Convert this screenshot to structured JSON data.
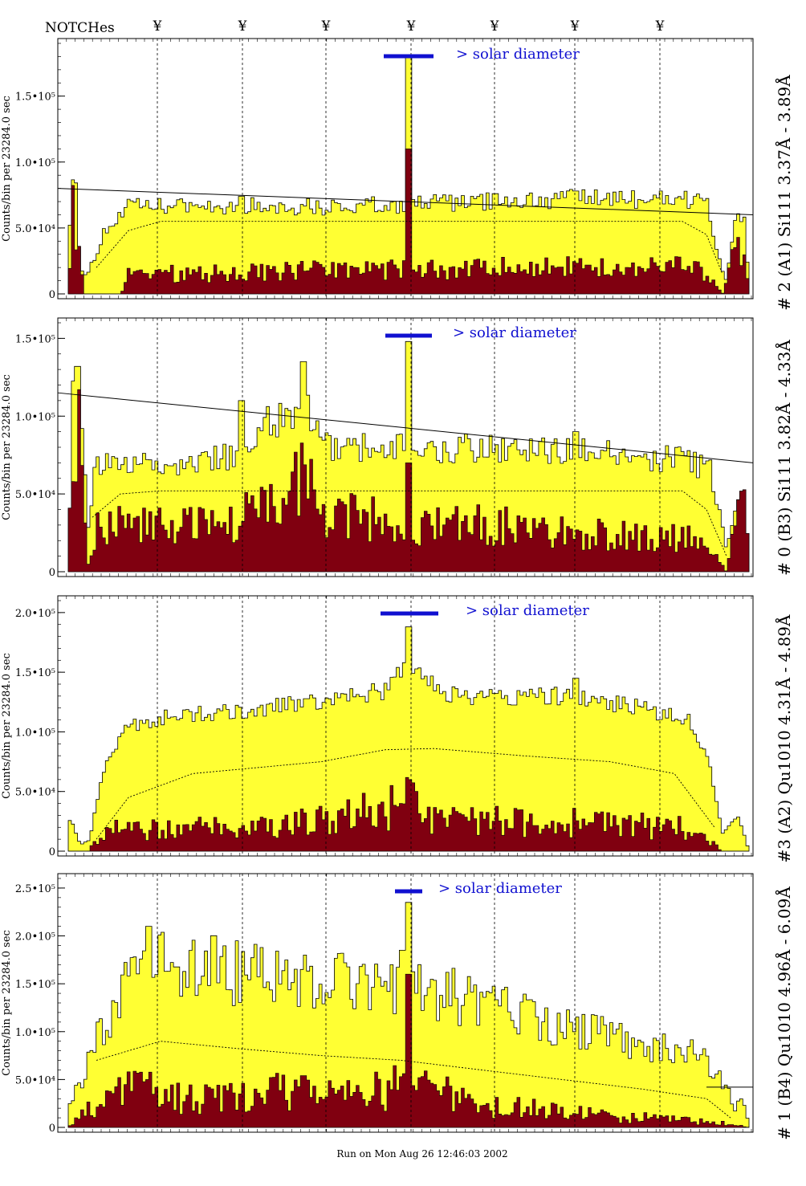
{
  "header": {
    "notches_label": "NOTCHes",
    "notch_symbol": "¥",
    "notch_positions": [
      196,
      302,
      406,
      512,
      616,
      716,
      822
    ]
  },
  "footer": {
    "run_text": "Run on Mon Aug 26 12:46:03 2002"
  },
  "colors": {
    "fill": "#ffff33",
    "dark": "#800010",
    "marker": "#1010d0"
  },
  "chart_data": [
    {
      "type": "bar",
      "panel_label": "# 2 (A1) Si111  3.37Å - 3.89Å",
      "ylabel": "Counts/bin per  23284.0 sec",
      "ylim": [
        0,
        190000
      ],
      "yticks": [
        {
          "v": 0,
          "label": "0"
        },
        {
          "v": 50000,
          "label": "5.0•10⁴"
        },
        {
          "v": 100000,
          "label": "1.0•10⁵"
        },
        {
          "v": 150000,
          "label": "1.5•10⁵"
        }
      ],
      "annotation": "> solar diameter",
      "marker_bar": [
        478,
        540
      ],
      "bins": 220,
      "envelope": [
        [
          85,
          0
        ],
        [
          88,
          90000
        ],
        [
          95,
          85000
        ],
        [
          100,
          20000
        ],
        [
          108,
          14000
        ],
        [
          120,
          30000
        ],
        [
          130,
          48000
        ],
        [
          145,
          55000
        ],
        [
          160,
          66000
        ],
        [
          300,
          67000
        ],
        [
          420,
          66000
        ],
        [
          500,
          68000
        ],
        [
          700,
          72000
        ],
        [
          850,
          72000
        ],
        [
          880,
          70000
        ],
        [
          895,
          30000
        ],
        [
          905,
          8000
        ],
        [
          915,
          55000
        ],
        [
          928,
          58000
        ],
        [
          933,
          0
        ]
      ],
      "dark_env": [
        [
          85,
          0
        ],
        [
          90,
          60000
        ],
        [
          100,
          30000
        ],
        [
          105,
          0
        ],
        [
          150,
          0
        ],
        [
          160,
          15000
        ],
        [
          300,
          16000
        ],
        [
          500,
          19000
        ],
        [
          700,
          20000
        ],
        [
          850,
          22000
        ],
        [
          880,
          15000
        ],
        [
          900,
          0
        ],
        [
          915,
          30000
        ],
        [
          928,
          40000
        ],
        [
          933,
          0
        ]
      ],
      "fill_noise": 0.1,
      "dark_noise": 0.45,
      "spikes": [
        {
          "x": 509,
          "v": 180000,
          "dv": 110000
        },
        {
          "x": 302,
          "v": 74000
        },
        {
          "x": 616,
          "v": 76000
        },
        {
          "x": 716,
          "v": 78000
        }
      ],
      "trend": [
        [
          72,
          80000
        ],
        [
          938,
          60000
        ]
      ],
      "dashed": [
        [
          120,
          20000
        ],
        [
          160,
          48000
        ],
        [
          200,
          55000
        ],
        [
          850,
          55000
        ],
        [
          880,
          45000
        ],
        [
          900,
          15000
        ]
      ]
    },
    {
      "type": "bar",
      "panel_label": "# 0 (B3) Si111  3.82Å - 4.33Å",
      "ylabel": "Counts/bin per  23284.0 sec",
      "ylim": [
        0,
        160000
      ],
      "yticks": [
        {
          "v": 0,
          "label": "0"
        },
        {
          "v": 50000,
          "label": "5.0•10⁴"
        },
        {
          "v": 100000,
          "label": "1.0•10⁵"
        },
        {
          "v": 150000,
          "label": "1.5•10⁵"
        }
      ],
      "annotation": "> solar diameter",
      "marker_bar": [
        480,
        538
      ],
      "bins": 220,
      "envelope": [
        [
          85,
          0
        ],
        [
          90,
          120000
        ],
        [
          100,
          100000
        ],
        [
          110,
          30000
        ],
        [
          120,
          70000
        ],
        [
          200,
          68000
        ],
        [
          300,
          75000
        ],
        [
          330,
          95000
        ],
        [
          360,
          100000
        ],
        [
          380,
          110000
        ],
        [
          400,
          80000
        ],
        [
          500,
          80000
        ],
        [
          700,
          78000
        ],
        [
          850,
          72000
        ],
        [
          885,
          65000
        ],
        [
          905,
          15000
        ],
        [
          918,
          50000
        ],
        [
          928,
          60000
        ],
        [
          933,
          0
        ]
      ],
      "dark_env": [
        [
          85,
          0
        ],
        [
          90,
          95000
        ],
        [
          100,
          80000
        ],
        [
          110,
          5000
        ],
        [
          120,
          30000
        ],
        [
          300,
          30000
        ],
        [
          320,
          65000
        ],
        [
          345,
          40000
        ],
        [
          380,
          60000
        ],
        [
          400,
          40000
        ],
        [
          500,
          30000
        ],
        [
          640,
          30000
        ],
        [
          700,
          25000
        ],
        [
          850,
          22000
        ],
        [
          885,
          15000
        ],
        [
          905,
          0
        ],
        [
          920,
          55000
        ],
        [
          928,
          60000
        ],
        [
          933,
          0
        ]
      ],
      "fill_noise": 0.12,
      "dark_noise": 0.45,
      "spikes": [
        {
          "x": 509,
          "v": 148000,
          "dv": 70000
        },
        {
          "x": 378,
          "v": 135000
        },
        {
          "x": 96,
          "v": 132000
        },
        {
          "x": 716,
          "v": 90000
        },
        {
          "x": 302,
          "v": 110000
        }
      ],
      "trend": [
        [
          72,
          115000
        ],
        [
          938,
          70000
        ]
      ],
      "dashed": [
        [
          115,
          35000
        ],
        [
          150,
          50000
        ],
        [
          200,
          52000
        ],
        [
          850,
          52000
        ],
        [
          880,
          40000
        ],
        [
          905,
          10000
        ]
      ]
    },
    {
      "type": "bar",
      "panel_label": "#3 (A2) Qu1010  4.31Å - 4.89Å",
      "ylabel": "Counts/bin per  23284.0 sec",
      "ylim": [
        0,
        210000
      ],
      "yticks": [
        {
          "v": 0,
          "label": "0"
        },
        {
          "v": 50000,
          "label": "5.0•10⁴"
        },
        {
          "v": 100000,
          "label": "1.0•10⁵"
        },
        {
          "v": 150000,
          "label": "1.5•10⁵"
        },
        {
          "v": 200000,
          "label": "2.0•10⁵"
        }
      ],
      "annotation": "> solar diameter",
      "marker_bar": [
        474,
        546
      ],
      "bins": 220,
      "envelope": [
        [
          85,
          30000
        ],
        [
          92,
          20000
        ],
        [
          100,
          5000
        ],
        [
          112,
          10000
        ],
        [
          120,
          40000
        ],
        [
          135,
          80000
        ],
        [
          160,
          105000
        ],
        [
          200,
          112000
        ],
        [
          300,
          118000
        ],
        [
          400,
          125000
        ],
        [
          480,
          135000
        ],
        [
          510,
          160000
        ],
        [
          560,
          130000
        ],
        [
          700,
          130000
        ],
        [
          800,
          120000
        ],
        [
          860,
          110000
        ],
        [
          885,
          70000
        ],
        [
          900,
          15000
        ],
        [
          920,
          30000
        ],
        [
          933,
          0
        ]
      ],
      "dark_env": [
        [
          85,
          0
        ],
        [
          110,
          0
        ],
        [
          120,
          10000
        ],
        [
          150,
          20000
        ],
        [
          300,
          18000
        ],
        [
          400,
          25000
        ],
        [
          480,
          35000
        ],
        [
          510,
          45000
        ],
        [
          540,
          25000
        ],
        [
          700,
          25000
        ],
        [
          850,
          20000
        ],
        [
          890,
          5000
        ],
        [
          900,
          0
        ],
        [
          933,
          0
        ]
      ],
      "fill_noise": 0.06,
      "dark_noise": 0.55,
      "spikes": [
        {
          "x": 509,
          "v": 188000,
          "dv": 60000
        },
        {
          "x": 716,
          "v": 145000
        }
      ],
      "trend": null,
      "dashed": [
        [
          120,
          10000
        ],
        [
          160,
          45000
        ],
        [
          240,
          65000
        ],
        [
          400,
          75000
        ],
        [
          480,
          85000
        ],
        [
          540,
          86000
        ],
        [
          650,
          80000
        ],
        [
          760,
          75000
        ],
        [
          840,
          65000
        ],
        [
          890,
          20000
        ]
      ]
    },
    {
      "type": "bar",
      "panel_label": "# 1 (B4) Qu1010 4.96Å - 6.09Å",
      "ylabel": "Counts/bin per  23284.0 sec",
      "ylim": [
        0,
        260000
      ],
      "yticks": [
        {
          "v": 0,
          "label": "0"
        },
        {
          "v": 50000,
          "label": "5.0•10⁴"
        },
        {
          "v": 100000,
          "label": "1.0•10⁵"
        },
        {
          "v": 150000,
          "label": "1.5•10⁵"
        },
        {
          "v": 200000,
          "label": "2.0•10⁵"
        },
        {
          "v": 250000,
          "label": "2.5•10⁵"
        }
      ],
      "annotation": "> solar diameter",
      "marker_bar": [
        492,
        526
      ],
      "bins": 220,
      "envelope": [
        [
          85,
          30000
        ],
        [
          100,
          40000
        ],
        [
          120,
          90000
        ],
        [
          150,
          140000
        ],
        [
          200,
          175000
        ],
        [
          300,
          160000
        ],
        [
          400,
          150000
        ],
        [
          500,
          150000
        ],
        [
          600,
          130000
        ],
        [
          700,
          105000
        ],
        [
          800,
          85000
        ],
        [
          870,
          75000
        ],
        [
          900,
          50000
        ],
        [
          915,
          20000
        ],
        [
          925,
          40000
        ],
        [
          933,
          0
        ]
      ],
      "dark_env": [
        [
          85,
          0
        ],
        [
          100,
          10000
        ],
        [
          130,
          30000
        ],
        [
          160,
          50000
        ],
        [
          200,
          30000
        ],
        [
          300,
          30000
        ],
        [
          350,
          40000
        ],
        [
          400,
          30000
        ],
        [
          500,
          45000
        ],
        [
          600,
          25000
        ],
        [
          700,
          15000
        ],
        [
          800,
          10000
        ],
        [
          900,
          5000
        ],
        [
          933,
          0
        ]
      ],
      "fill_noise": 0.22,
      "dark_noise": 0.6,
      "spikes": [
        {
          "x": 509,
          "v": 235000,
          "dv": 160000
        },
        {
          "x": 500,
          "v": 185000
        },
        {
          "x": 186,
          "v": 210000
        },
        {
          "x": 716,
          "v": 100000
        }
      ],
      "trend": [
        [
          880,
          42000
        ],
        [
          938,
          42000
        ]
      ],
      "dashed": [
        [
          120,
          70000
        ],
        [
          200,
          90000
        ],
        [
          300,
          82000
        ],
        [
          400,
          75000
        ],
        [
          500,
          70000
        ],
        [
          600,
          60000
        ],
        [
          700,
          50000
        ],
        [
          800,
          40000
        ],
        [
          880,
          30000
        ],
        [
          910,
          10000
        ]
      ]
    }
  ]
}
